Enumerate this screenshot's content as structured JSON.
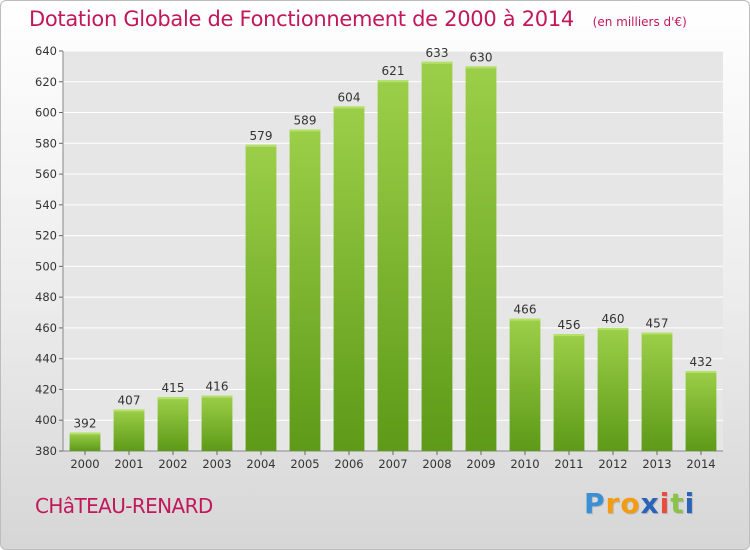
{
  "chart_data": {
    "type": "bar",
    "title": "Dotation Globale de Fonctionnement de 2000 à 2014",
    "unit_note": "(en milliers d'€)",
    "categories": [
      "2000",
      "2001",
      "2002",
      "2003",
      "2004",
      "2005",
      "2006",
      "2007",
      "2008",
      "2009",
      "2010",
      "2011",
      "2012",
      "2013",
      "2014"
    ],
    "values": [
      392,
      407,
      415,
      416,
      579,
      589,
      604,
      621,
      633,
      630,
      466,
      456,
      460,
      457,
      432
    ],
    "xlabel": "",
    "ylabel": "",
    "ylim": [
      380,
      640
    ],
    "yticks": [
      380,
      400,
      420,
      440,
      460,
      480,
      500,
      520,
      540,
      560,
      580,
      600,
      620,
      640
    ],
    "grid": true,
    "legend": "none",
    "bar_color_top": "#9ccf49",
    "bar_color_bottom": "#5d9a17",
    "grid_color": "#ffffff"
  },
  "location": "CHâTEAU-RENARD",
  "brand": {
    "letters": [
      {
        "char": "P",
        "color": "#3b8fd4"
      },
      {
        "char": "r",
        "color": "#f39c12"
      },
      {
        "char": "o",
        "color": "#f39c12"
      },
      {
        "char": "x",
        "color": "#2a64b8"
      },
      {
        "char": "i",
        "color": "#e74c3c"
      },
      {
        "char": "t",
        "color": "#8bc34a"
      },
      {
        "char": "i",
        "color": "#2a64b8"
      }
    ]
  },
  "colors": {
    "title": "#c2185b",
    "axis_text": "#333333"
  }
}
